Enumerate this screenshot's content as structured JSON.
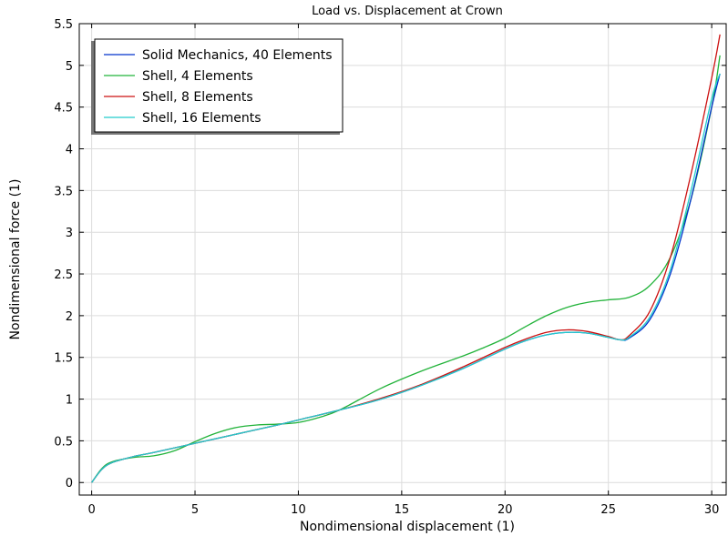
{
  "chart_data": {
    "type": "line",
    "title": "Load vs. Displacement at Crown",
    "xlabel": "Nondimensional displacement (1)",
    "ylabel": "Nondimensional force (1)",
    "xlim": [
      -0.6,
      30.7
    ],
    "ylim": [
      -0.15,
      5.5
    ],
    "xticks": [
      0,
      5,
      10,
      15,
      20,
      25,
      30
    ],
    "yticks": [
      0,
      0.5,
      1,
      1.5,
      2,
      2.5,
      3,
      3.5,
      4,
      4.5,
      5,
      5.5
    ],
    "xtick_labels": [
      "0",
      "5",
      "10",
      "15",
      "20",
      "25",
      "30"
    ],
    "ytick_labels": [
      "0",
      "0.5",
      "1",
      "1.5",
      "2",
      "2.5",
      "3",
      "3.5",
      "4",
      "4.5",
      "5",
      "5.5"
    ],
    "grid": true,
    "legend_position": "top-left",
    "series": [
      {
        "name": "Solid Mechanics, 40 Elements",
        "color": "#0033cc",
        "x": [
          0,
          0.5,
          1,
          2,
          3,
          5,
          7,
          9,
          10,
          12,
          14,
          16,
          18,
          20,
          21,
          22,
          23,
          24,
          25,
          25.6,
          26,
          27,
          28,
          29,
          30,
          30.4
        ],
        "y": [
          0,
          0.16,
          0.24,
          0.31,
          0.36,
          0.47,
          0.58,
          0.69,
          0.75,
          0.87,
          1.0,
          1.17,
          1.37,
          1.6,
          1.7,
          1.77,
          1.8,
          1.79,
          1.74,
          1.71,
          1.73,
          1.95,
          2.5,
          3.4,
          4.5,
          4.9
        ]
      },
      {
        "name": "Shell, 4 Elements",
        "color": "#22b33a",
        "x": [
          0,
          0.5,
          1,
          2,
          3,
          4,
          5,
          6,
          7,
          8,
          9,
          10,
          11,
          12,
          14,
          16,
          18,
          19,
          20,
          21,
          22,
          23,
          24,
          25,
          26,
          27,
          28,
          29,
          30,
          30.4
        ],
        "y": [
          0,
          0.17,
          0.25,
          0.3,
          0.32,
          0.38,
          0.49,
          0.59,
          0.66,
          0.69,
          0.7,
          0.72,
          0.78,
          0.87,
          1.13,
          1.34,
          1.52,
          1.62,
          1.73,
          1.87,
          2.0,
          2.1,
          2.16,
          2.19,
          2.22,
          2.36,
          2.7,
          3.4,
          4.5,
          5.12
        ]
      },
      {
        "name": "Shell, 8 Elements",
        "color": "#cc1111",
        "x": [
          0,
          0.5,
          1,
          2,
          3,
          5,
          7,
          9,
          10,
          12,
          14,
          16,
          18,
          20,
          21,
          22,
          23,
          24,
          25,
          25.6,
          26,
          27,
          28,
          29,
          30,
          30.4
        ],
        "y": [
          0,
          0.16,
          0.24,
          0.31,
          0.36,
          0.47,
          0.58,
          0.69,
          0.75,
          0.87,
          1.01,
          1.18,
          1.39,
          1.62,
          1.72,
          1.8,
          1.83,
          1.81,
          1.75,
          1.71,
          1.76,
          2.05,
          2.7,
          3.7,
          4.85,
          5.37
        ]
      },
      {
        "name": "Shell, 16 Elements",
        "color": "#22cccc",
        "x": [
          0,
          0.5,
          1,
          2,
          3,
          5,
          7,
          9,
          10,
          12,
          14,
          16,
          18,
          20,
          21,
          22,
          23,
          24,
          25,
          25.6,
          26,
          27,
          28,
          29,
          30,
          30.4
        ],
        "y": [
          0,
          0.16,
          0.24,
          0.31,
          0.36,
          0.47,
          0.58,
          0.69,
          0.75,
          0.87,
          1.0,
          1.17,
          1.37,
          1.6,
          1.7,
          1.77,
          1.8,
          1.79,
          1.74,
          1.71,
          1.74,
          1.98,
          2.55,
          3.5,
          4.6,
          4.9
        ]
      }
    ]
  },
  "colors": {
    "background": "#ffffff",
    "grid": "#dcdcdc",
    "axis": "#000000",
    "legend_shadow": "#777777"
  }
}
